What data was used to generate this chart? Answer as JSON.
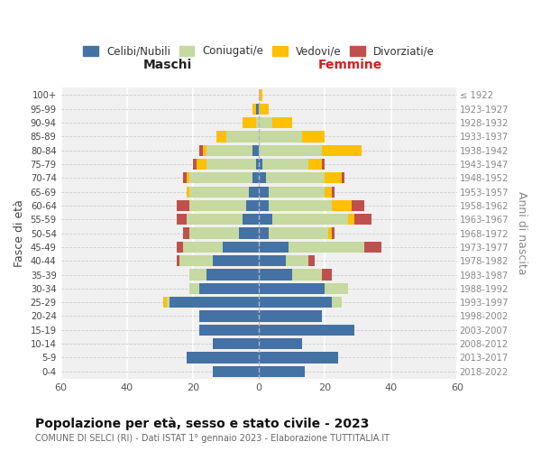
{
  "age_groups": [
    "0-4",
    "5-9",
    "10-14",
    "15-19",
    "20-24",
    "25-29",
    "30-34",
    "35-39",
    "40-44",
    "45-49",
    "50-54",
    "55-59",
    "60-64",
    "65-69",
    "70-74",
    "75-79",
    "80-84",
    "85-89",
    "90-94",
    "95-99",
    "100+"
  ],
  "birth_years": [
    "2018-2022",
    "2013-2017",
    "2008-2012",
    "2003-2007",
    "1998-2002",
    "1993-1997",
    "1988-1992",
    "1983-1987",
    "1978-1982",
    "1973-1977",
    "1968-1972",
    "1963-1967",
    "1958-1962",
    "1953-1957",
    "1948-1952",
    "1943-1947",
    "1938-1942",
    "1933-1937",
    "1928-1932",
    "1923-1927",
    "≤ 1922"
  ],
  "colors": {
    "celibe": "#4472a4",
    "coniugato": "#c5d9a0",
    "vedovo": "#ffc000",
    "divorziato": "#c0504d"
  },
  "males": {
    "celibe": [
      14,
      22,
      14,
      18,
      18,
      27,
      18,
      16,
      14,
      11,
      6,
      5,
      4,
      3,
      2,
      1,
      2,
      0,
      0,
      1,
      0
    ],
    "coniugato": [
      0,
      0,
      0,
      0,
      0,
      1,
      3,
      5,
      10,
      12,
      15,
      17,
      17,
      18,
      19,
      15,
      14,
      10,
      1,
      0,
      0
    ],
    "vedovo": [
      0,
      0,
      0,
      0,
      0,
      1,
      0,
      0,
      0,
      0,
      0,
      0,
      0,
      1,
      1,
      3,
      1,
      3,
      4,
      1,
      0
    ],
    "divorziato": [
      0,
      0,
      0,
      0,
      0,
      0,
      0,
      0,
      1,
      2,
      2,
      3,
      4,
      0,
      1,
      1,
      1,
      0,
      0,
      0,
      0
    ]
  },
  "females": {
    "celibe": [
      14,
      24,
      13,
      29,
      19,
      22,
      20,
      10,
      8,
      9,
      3,
      4,
      3,
      3,
      2,
      1,
      0,
      0,
      0,
      0,
      0
    ],
    "coniugato": [
      0,
      0,
      0,
      0,
      0,
      3,
      7,
      9,
      7,
      23,
      18,
      23,
      19,
      17,
      18,
      14,
      19,
      13,
      4,
      0,
      0
    ],
    "vedovo": [
      0,
      0,
      0,
      0,
      0,
      0,
      0,
      0,
      0,
      0,
      1,
      2,
      6,
      2,
      5,
      4,
      12,
      7,
      6,
      3,
      1
    ],
    "divorziato": [
      0,
      0,
      0,
      0,
      0,
      0,
      0,
      3,
      2,
      5,
      1,
      5,
      4,
      1,
      1,
      1,
      0,
      0,
      0,
      0,
      0
    ]
  },
  "xlim": [
    -60,
    60
  ],
  "xlabel_left": "Maschi",
  "xlabel_right": "Femmine",
  "ylabel": "Fasce di età",
  "ylabel_right": "Anni di nascita",
  "title": "Popolazione per età, sesso e stato civile - 2023",
  "subtitle": "COMUNE DI SELCI (RI) - Dati ISTAT 1° gennaio 2023 - Elaborazione TUTTITALIA.IT",
  "legend_labels": [
    "Celibi/Nubili",
    "Coniugati/e",
    "Vedovi/e",
    "Divorziati/e"
  ],
  "xticks": [
    -60,
    -40,
    -20,
    0,
    20,
    40,
    60
  ],
  "xticklabels": [
    "60",
    "40",
    "20",
    "0",
    "20",
    "40",
    "60"
  ],
  "bg_color": "#f0f0f0",
  "grid_color": "#ffffff",
  "dashed_grid_color": "#cccccc"
}
